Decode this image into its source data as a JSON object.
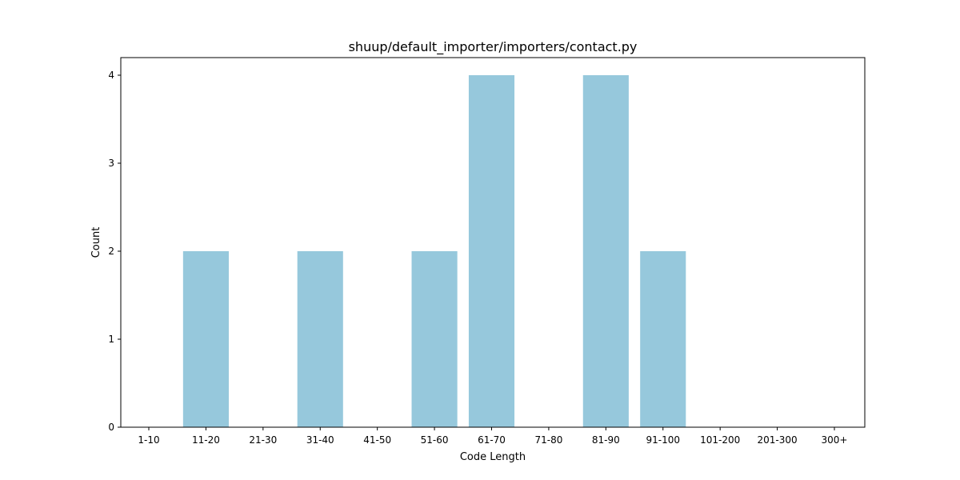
{
  "chart_data": {
    "type": "bar",
    "title": "shuup/default_importer/importers/contact.py",
    "xlabel": "Code Length",
    "ylabel": "Count",
    "categories": [
      "1-10",
      "11-20",
      "21-30",
      "31-40",
      "41-50",
      "51-60",
      "61-70",
      "71-80",
      "81-90",
      "91-100",
      "101-200",
      "201-300",
      "300+"
    ],
    "values": [
      0,
      2,
      0,
      2,
      0,
      2,
      4,
      0,
      4,
      2,
      0,
      0,
      0
    ],
    "ylim": [
      0,
      4.2
    ],
    "yticks": [
      0,
      1,
      2,
      3,
      4
    ],
    "bar_color": "#96c8dc",
    "grid": false,
    "legend": "none"
  }
}
